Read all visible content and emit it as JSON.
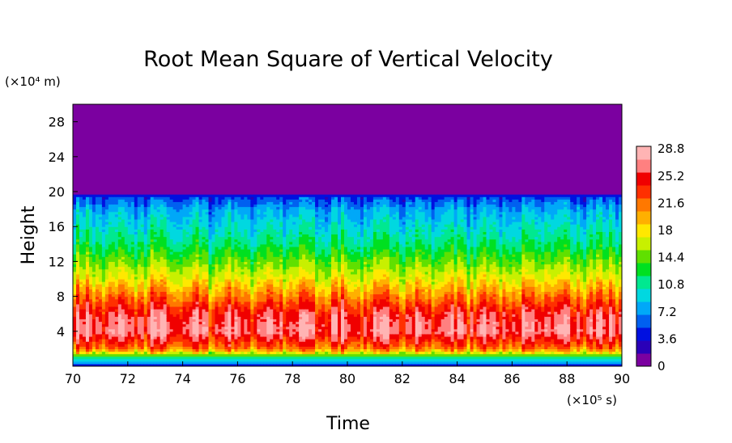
{
  "chart_data": {
    "type": "heatmap",
    "title": "Root Mean Square of Vertical Velocity",
    "xlabel": "Time",
    "ylabel": "Height",
    "x_unit": "(×10⁵ s)",
    "y_unit": "(×10⁴ m)",
    "xlim": [
      70,
      90
    ],
    "ylim": [
      0,
      30
    ],
    "x_ticks": [
      "70",
      "72",
      "74",
      "76",
      "78",
      "80",
      "82",
      "84",
      "86",
      "88",
      "90"
    ],
    "y_ticks": [
      "4",
      "8",
      "12",
      "16",
      "20",
      "24",
      "28"
    ],
    "colorbar": {
      "min": 0,
      "max": 30,
      "ticks": [
        "0",
        "3.6",
        "7.2",
        "10.8",
        "14.4",
        "18",
        "21.6",
        "25.2",
        "28.8"
      ],
      "colors": [
        "#7b00a0",
        "#2a00b8",
        "#0010e0",
        "#0060f0",
        "#00a8f8",
        "#00d8e0",
        "#00e890",
        "#00e020",
        "#60e000",
        "#c8f000",
        "#ffe800",
        "#ffb000",
        "#ff7800",
        "#ff3000",
        "#f00000",
        "#ff8080",
        "#ffb4b4"
      ]
    },
    "profile": [
      {
        "height": 0,
        "value": 4
      },
      {
        "height": 1,
        "value": 12
      },
      {
        "height": 2,
        "value": 22
      },
      {
        "height": 4,
        "value": 27.5
      },
      {
        "height": 6,
        "value": 26
      },
      {
        "height": 8,
        "value": 22
      },
      {
        "height": 10,
        "value": 18
      },
      {
        "height": 12,
        "value": 15
      },
      {
        "height": 14,
        "value": 12
      },
      {
        "height": 16,
        "value": 10
      },
      {
        "height": 18,
        "value": 8
      },
      {
        "height": 19.5,
        "value": 5
      },
      {
        "height": 20,
        "value": 0
      },
      {
        "height": 30,
        "value": 0
      }
    ]
  }
}
